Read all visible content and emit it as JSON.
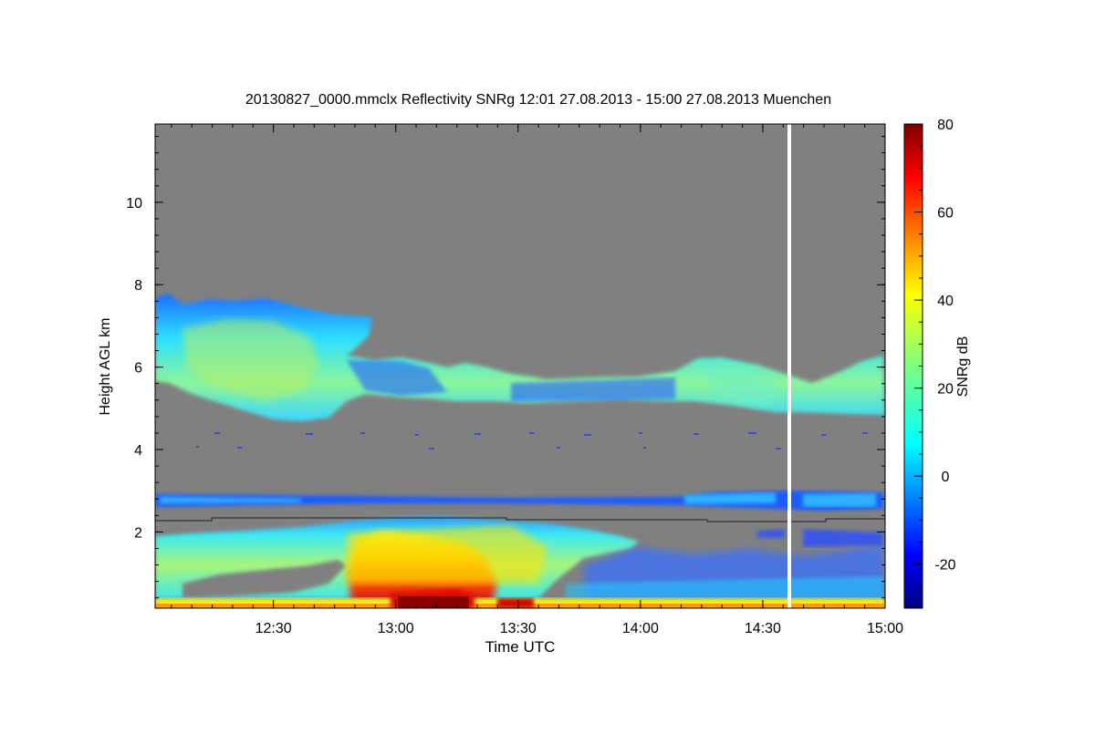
{
  "chart_data": {
    "type": "heatmap",
    "title": "20130827_0000.mmclx Reflectivity SNRg   12:01 27.08.2013 - 15:00 27.08.2013 Muenchen",
    "xlabel": "Time UTC",
    "ylabel": "Height AGL km",
    "colorbar_label": "SNRg dB",
    "x_range": [
      "12:01",
      "15:00"
    ],
    "y_range_km": [
      0.15,
      11.9
    ],
    "x_ticks": [
      "12:30",
      "13:00",
      "13:30",
      "14:00",
      "14:30",
      "15:00"
    ],
    "y_ticks": [
      "2",
      "4",
      "6",
      "8",
      "10"
    ],
    "colorbar_range_db": [
      -30,
      80
    ],
    "colorbar_ticks": [
      "-20",
      "0",
      "20",
      "40",
      "60",
      "80"
    ],
    "background_color": "#808080",
    "colormap": "jet",
    "data_gap_time": "14:38",
    "features": [
      {
        "name": "cirrus-layer",
        "time": [
          "12:01",
          "15:00"
        ],
        "height_km": [
          4.8,
          7.8
        ],
        "snr_db": [
          -5,
          30
        ]
      },
      {
        "name": "mid-level-band",
        "time": [
          "12:01",
          "15:00"
        ],
        "height_km": [
          2.5,
          2.9
        ],
        "snr_db": [
          -20,
          5
        ]
      },
      {
        "name": "boundary-layer-convection",
        "time": [
          "12:01",
          "13:55"
        ],
        "height_km": [
          0.15,
          2.3
        ],
        "snr_db": [
          10,
          80
        ]
      },
      {
        "name": "peak-precipitation",
        "time": [
          "13:02",
          "13:10"
        ],
        "height_km": [
          0.15,
          0.4
        ],
        "snr_db": [
          70,
          80
        ]
      }
    ]
  }
}
